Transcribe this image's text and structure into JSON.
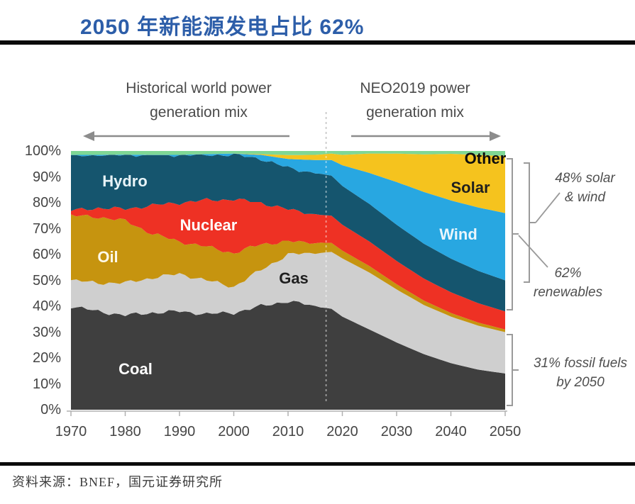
{
  "page": {
    "title": "2050 年新能源发电占比 62%",
    "source_label": "资料来源：BNEF，国元证券研究所"
  },
  "header": {
    "left_arrow_label": {
      "line1": "Historical world power",
      "line2": "generation mix"
    },
    "right_arrow_label": {
      "line1": "NEO2019 power",
      "line2": "generation mix"
    }
  },
  "chart_data": {
    "type": "stacked_area",
    "title": "World power generation mix, historical and NEO2019 projection",
    "unit": "%",
    "ylim": [
      0,
      100
    ],
    "grid": false,
    "legend": "labels drawn inside areas",
    "projection_divider_year": 2017,
    "yticks": [
      "100%",
      "90%",
      "80%",
      "70%",
      "60%",
      "50%",
      "40%",
      "30%",
      "20%",
      "10%",
      "0%"
    ],
    "xticks": [
      1970,
      1980,
      1990,
      2000,
      2010,
      2020,
      2030,
      2040,
      2050
    ],
    "x": [
      1970,
      1975,
      1980,
      1985,
      1990,
      1995,
      2000,
      2005,
      2010,
      2015,
      2018,
      2020,
      2025,
      2030,
      2035,
      2040,
      2045,
      2050
    ],
    "series": [
      {
        "name": "coal",
        "label": "Coal",
        "color": "#3f3f3f",
        "values": [
          40,
          38,
          36.5,
          37.5,
          38,
          37,
          37.5,
          40,
          42,
          40,
          39,
          36,
          31,
          26,
          21.5,
          18,
          15.5,
          14
        ]
      },
      {
        "name": "gas",
        "label": "Gas",
        "color": "#cfcfcf",
        "values": [
          10,
          11,
          12.5,
          13.5,
          14.5,
          13,
          10,
          14,
          18,
          20.5,
          22,
          22.5,
          22,
          20.5,
          19,
          18,
          17,
          16
        ]
      },
      {
        "name": "oil",
        "label": "Oil",
        "color": "#c6940f",
        "values": [
          25,
          25.5,
          24,
          17,
          12.5,
          13,
          13,
          10,
          5,
          4,
          3.5,
          3,
          2.5,
          2,
          1.7,
          1.4,
          1.2,
          1
        ]
      },
      {
        "name": "nuclear",
        "label": "Nuclear",
        "color": "#ee3124",
        "values": [
          2,
          3.5,
          4.6,
          11,
          15,
          18,
          20.8,
          16,
          12.4,
          11,
          10.5,
          10,
          9.5,
          9,
          8.5,
          8,
          7.5,
          7
        ]
      },
      {
        "name": "hydro",
        "label": "Hydro",
        "color": "#15556e",
        "values": [
          21.5,
          20.5,
          21,
          19.5,
          18.5,
          17.5,
          17.2,
          17,
          16,
          16,
          15.5,
          15,
          14.5,
          14,
          13.5,
          13,
          12.5,
          12
        ]
      },
      {
        "name": "wind",
        "label": "Wind",
        "color": "#28a7e1",
        "values": [
          0,
          0,
          0,
          0,
          0,
          0.3,
          0.5,
          1.5,
          3.5,
          5,
          6,
          8,
          12,
          16.5,
          20,
          22.5,
          24.5,
          26
        ]
      },
      {
        "name": "solar",
        "label": "Solar",
        "color": "#f5c31e",
        "values": [
          0,
          0,
          0,
          0,
          0,
          0,
          0,
          0.3,
          1.5,
          2,
          2.5,
          4,
          7.5,
          11,
          14.5,
          18,
          20.3,
          22
        ]
      },
      {
        "name": "other",
        "label": "Other",
        "color": "#7fd795",
        "values": [
          1.5,
          1.5,
          1.4,
          1.5,
          1.5,
          1.2,
          1,
          1.2,
          1.6,
          1.5,
          1,
          1.5,
          1,
          1,
          1.3,
          1.1,
          1.5,
          2
        ]
      }
    ],
    "annotations": {
      "solar_wind": {
        "line1": "48% solar",
        "line2": "& wind"
      },
      "renewables": {
        "line1": "62%",
        "line2": "renewables"
      },
      "fossil": {
        "line1": "31% fossil fuels",
        "line2": "by 2050"
      }
    }
  }
}
